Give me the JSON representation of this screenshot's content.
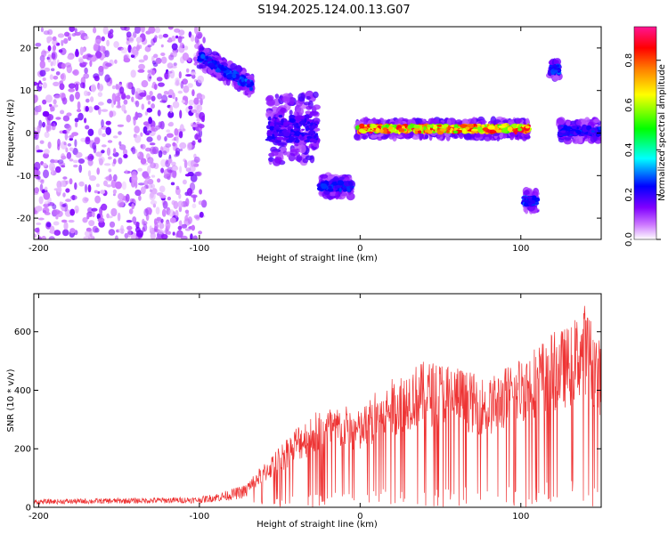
{
  "title": "S194.2025.124.00.13.G07",
  "chart_data": [
    {
      "type": "heatmap",
      "xlabel": "Height of straight line (km)",
      "ylabel": "Frequency (Hz)",
      "xlim": [
        -203,
        150
      ],
      "ylim": [
        -25,
        25
      ],
      "x_ticks": [
        -200,
        -100,
        0,
        100
      ],
      "y_ticks": [
        -20,
        -10,
        0,
        10,
        20
      ],
      "colorbar": {
        "label": "Normalized spectral amplitude",
        "range": [
          0,
          0.95
        ],
        "ticks": [
          "0.0",
          "0.2",
          "0.4",
          "0.6",
          "0.8"
        ],
        "colormap": [
          "#ffffff",
          "#cc77ff",
          "#8000ff",
          "#0000ff",
          "#00ffff",
          "#00ff00",
          "#ffff00",
          "#ff8000",
          "#ff0000",
          "#ff1493"
        ]
      },
      "features": [
        {
          "x_range": [
            -203,
            -97
          ],
          "freq_center": 0,
          "freq_width": 50,
          "amplitude": 0.05,
          "kind": "scatter noise"
        },
        {
          "x_range": [
            -100,
            -67
          ],
          "freq_start": 18,
          "freq_end": 11,
          "amplitude": 0.25
        },
        {
          "x_range": [
            -57,
            -27
          ],
          "freq_center": 1,
          "freq_width": 10,
          "amplitude": 0.18
        },
        {
          "x_range": [
            -25,
            -5
          ],
          "freq_center": -12.5,
          "freq_width": 3,
          "amplitude": 0.22
        },
        {
          "x_range": [
            -2,
            105
          ],
          "freq_center": 1,
          "freq_width": 2.5,
          "amplitude": 0.85
        },
        {
          "x_range": [
            102,
            110
          ],
          "freq_center": -16,
          "freq_width": 3,
          "amplitude": 0.25
        },
        {
          "x_range": [
            118,
            124
          ],
          "freq_center": 15,
          "freq_width": 3,
          "amplitude": 0.25
        },
        {
          "x_range": [
            124,
            150
          ],
          "freq_center": 0.5,
          "freq_width": 3,
          "amplitude": 0.22
        }
      ]
    },
    {
      "type": "line",
      "xlabel": "Height of straight line (km)",
      "ylabel": "SNR (10 * v/v)",
      "xlim": [
        -203,
        150
      ],
      "ylim": [
        0,
        730
      ],
      "x_ticks": [
        -200,
        -100,
        0,
        100
      ],
      "y_ticks": [
        0,
        200,
        400,
        600
      ],
      "series": [
        {
          "color": "#ee3333",
          "envelope": [
            {
              "x": -203,
              "min": 0,
              "max": 30
            },
            {
              "x": -150,
              "min": 0,
              "max": 35
            },
            {
              "x": -100,
              "min": 0,
              "max": 40
            },
            {
              "x": -85,
              "min": 0,
              "max": 60
            },
            {
              "x": -70,
              "min": 0,
              "max": 90
            },
            {
              "x": -55,
              "min": 0,
              "max": 180
            },
            {
              "x": -40,
              "min": 0,
              "max": 280
            },
            {
              "x": -25,
              "min": 0,
              "max": 340
            },
            {
              "x": -10,
              "min": 0,
              "max": 350
            },
            {
              "x": 0,
              "min": 0,
              "max": 330
            },
            {
              "x": 10,
              "min": 0,
              "max": 400
            },
            {
              "x": 20,
              "min": 0,
              "max": 440
            },
            {
              "x": 30,
              "min": 0,
              "max": 480
            },
            {
              "x": 40,
              "min": 0,
              "max": 500
            },
            {
              "x": 50,
              "min": 0,
              "max": 500
            },
            {
              "x": 60,
              "min": 0,
              "max": 490
            },
            {
              "x": 70,
              "min": 0,
              "max": 460
            },
            {
              "x": 80,
              "min": 0,
              "max": 440
            },
            {
              "x": 90,
              "min": 0,
              "max": 480
            },
            {
              "x": 100,
              "min": 0,
              "max": 520
            },
            {
              "x": 110,
              "min": 0,
              "max": 560
            },
            {
              "x": 120,
              "min": 0,
              "max": 600
            },
            {
              "x": 130,
              "min": 0,
              "max": 620
            },
            {
              "x": 140,
              "min": 0,
              "max": 700
            },
            {
              "x": 150,
              "min": 0,
              "max": 560
            }
          ]
        }
      ]
    }
  ]
}
